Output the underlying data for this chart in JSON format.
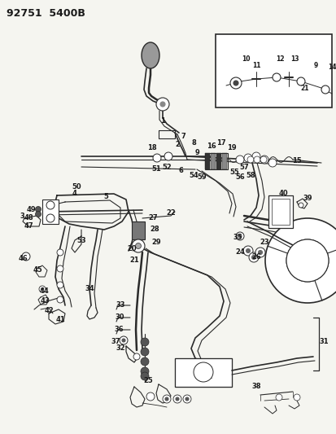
{
  "title": "92751  5400B",
  "bg_color": "#f5f5f0",
  "line_color": "#2a2a2a",
  "text_color": "#1a1a1a",
  "title_fontsize": 9,
  "label_fontsize": 6,
  "fig_width": 4.14,
  "fig_height": 5.33,
  "dpi": 100
}
